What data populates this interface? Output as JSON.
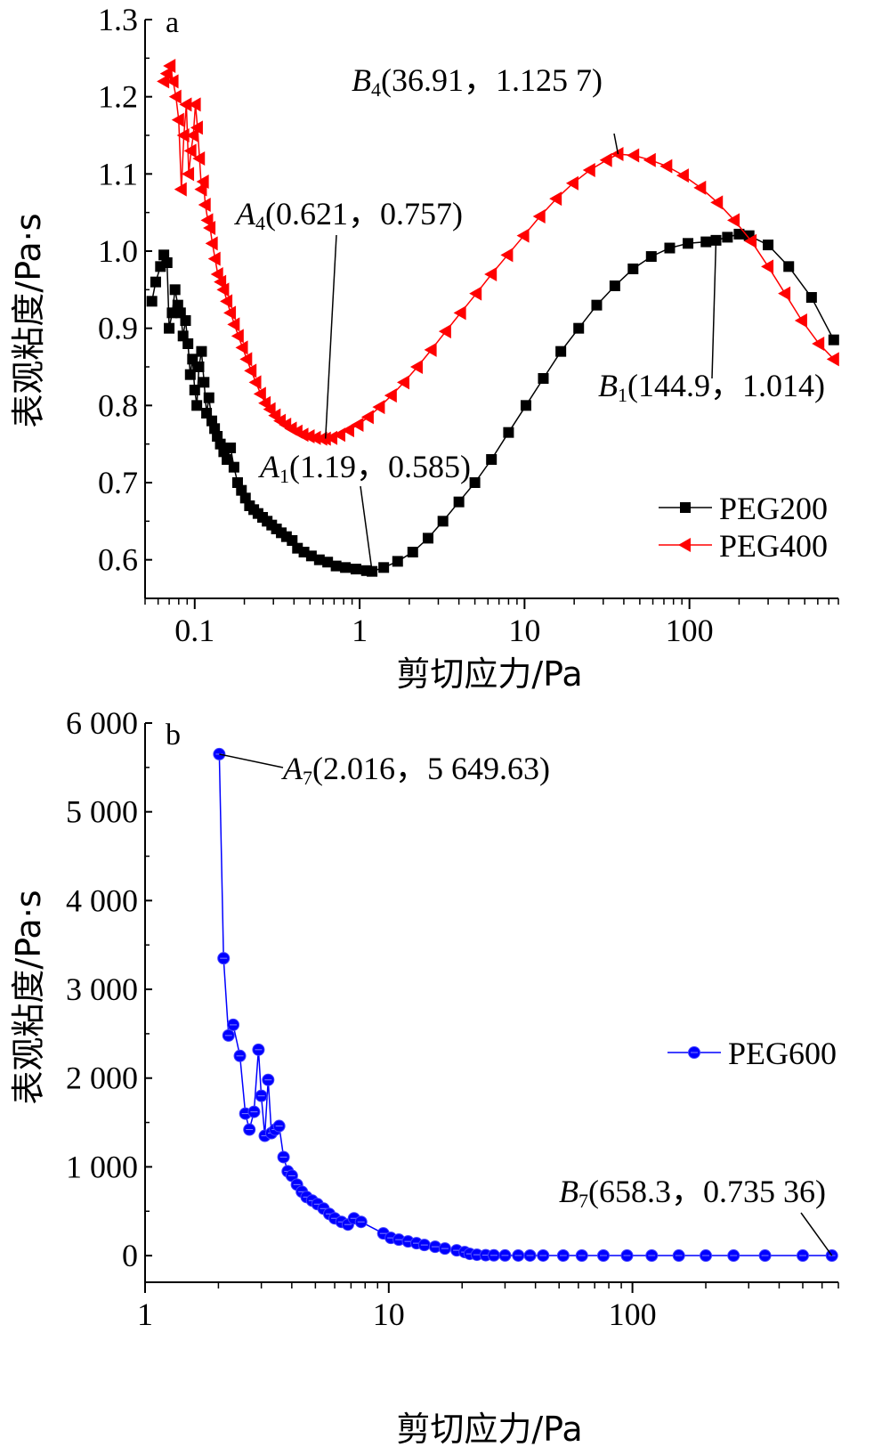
{
  "chart_data": [
    {
      "panel": "a",
      "type": "line",
      "xlabel": "剪切应力/Pa",
      "ylabel": "表观粘度/Pa·s",
      "xscale": "log",
      "xlim": [
        0.05,
        800
      ],
      "ylim": [
        0.55,
        1.3
      ],
      "x_ticks": [
        0.1,
        1,
        10,
        100
      ],
      "x_tick_labels": [
        "0.1",
        "1",
        "10",
        "100"
      ],
      "y_ticks": [
        0.6,
        0.7,
        0.8,
        0.9,
        1.0,
        1.1,
        1.2,
        1.3
      ],
      "y_tick_labels": [
        "0.6",
        "0.7",
        "0.8",
        "0.9",
        "1.0",
        "1.1",
        "1.2",
        "1.3"
      ],
      "legend_position": "bottom-right",
      "series": [
        {
          "name": "PEG200",
          "color": "#000000",
          "marker": "square",
          "x": [
            0.055,
            0.058,
            0.062,
            0.065,
            0.068,
            0.07,
            0.073,
            0.076,
            0.079,
            0.082,
            0.085,
            0.088,
            0.091,
            0.094,
            0.097,
            0.1,
            0.103,
            0.106,
            0.11,
            0.114,
            0.118,
            0.122,
            0.127,
            0.132,
            0.137,
            0.143,
            0.15,
            0.157,
            0.165,
            0.173,
            0.182,
            0.192,
            0.203,
            0.215,
            0.228,
            0.242,
            0.258,
            0.275,
            0.293,
            0.313,
            0.335,
            0.36,
            0.39,
            0.42,
            0.46,
            0.51,
            0.57,
            0.64,
            0.72,
            0.82,
            0.95,
            1.1,
            1.19,
            1.4,
            1.7,
            2.1,
            2.6,
            3.2,
            4.0,
            5.0,
            6.3,
            8.0,
            10.2,
            13.0,
            16.6,
            21.3,
            27.4,
            35.3,
            45.5,
            58.7,
            75.9,
            98,
            126,
            144.9,
            170,
            200,
            230,
            300,
            400,
            550,
            750
          ],
          "values": [
            0.935,
            0.96,
            0.98,
            0.995,
            0.985,
            0.9,
            0.92,
            0.95,
            0.93,
            0.92,
            0.89,
            0.91,
            0.88,
            0.84,
            0.86,
            0.82,
            0.8,
            0.85,
            0.87,
            0.83,
            0.79,
            0.81,
            0.78,
            0.77,
            0.76,
            0.75,
            0.74,
            0.73,
            0.745,
            0.72,
            0.7,
            0.69,
            0.68,
            0.67,
            0.665,
            0.66,
            0.655,
            0.65,
            0.645,
            0.64,
            0.635,
            0.63,
            0.625,
            0.615,
            0.61,
            0.605,
            0.6,
            0.597,
            0.592,
            0.59,
            0.588,
            0.586,
            0.585,
            0.59,
            0.598,
            0.61,
            0.628,
            0.65,
            0.675,
            0.7,
            0.73,
            0.765,
            0.8,
            0.835,
            0.87,
            0.9,
            0.93,
            0.955,
            0.977,
            0.993,
            1.004,
            1.01,
            1.012,
            1.014,
            1.018,
            1.022,
            1.02,
            1.008,
            0.98,
            0.94,
            0.885
          ]
        },
        {
          "name": "PEG400",
          "color": "#ff0000",
          "marker": "triangle-left",
          "x": [
            0.065,
            0.068,
            0.071,
            0.074,
            0.077,
            0.08,
            0.083,
            0.086,
            0.089,
            0.092,
            0.095,
            0.098,
            0.101,
            0.104,
            0.107,
            0.11,
            0.113,
            0.116,
            0.12,
            0.124,
            0.128,
            0.133,
            0.138,
            0.144,
            0.15,
            0.157,
            0.165,
            0.174,
            0.184,
            0.195,
            0.207,
            0.22,
            0.235,
            0.251,
            0.268,
            0.287,
            0.308,
            0.331,
            0.357,
            0.386,
            0.418,
            0.454,
            0.495,
            0.54,
            0.59,
            0.621,
            0.68,
            0.76,
            0.86,
            0.98,
            1.13,
            1.32,
            1.56,
            1.86,
            2.24,
            2.72,
            3.33,
            4.1,
            5.1,
            6.3,
            7.9,
            9.9,
            12.4,
            15.6,
            19.7,
            24.9,
            31.5,
            36.91,
            46,
            58,
            73,
            92,
            117,
            148,
            187,
            237,
            300,
            380,
            480,
            610,
            750
          ],
          "values": [
            1.22,
            1.23,
            1.24,
            1.22,
            1.2,
            1.17,
            1.08,
            1.15,
            1.19,
            1.1,
            1.13,
            1.15,
            1.19,
            1.16,
            1.12,
            1.08,
            1.09,
            1.06,
            1.04,
            1.03,
            1.01,
            0.99,
            0.97,
            0.96,
            0.95,
            0.935,
            0.92,
            0.905,
            0.89,
            0.875,
            0.86,
            0.845,
            0.83,
            0.815,
            0.803,
            0.795,
            0.787,
            0.78,
            0.775,
            0.77,
            0.766,
            0.762,
            0.76,
            0.758,
            0.757,
            0.757,
            0.758,
            0.762,
            0.768,
            0.775,
            0.785,
            0.798,
            0.813,
            0.83,
            0.85,
            0.872,
            0.896,
            0.92,
            0.945,
            0.97,
            0.995,
            1.02,
            1.045,
            1.068,
            1.088,
            1.105,
            1.118,
            1.1257,
            1.124,
            1.118,
            1.11,
            1.098,
            1.082,
            1.063,
            1.04,
            1.013,
            0.98,
            0.945,
            0.91,
            0.88,
            0.86
          ]
        }
      ],
      "annotations": [
        {
          "letter": "B",
          "sub": "4",
          "text": "(36.91，1.125 7)",
          "x": 36.91,
          "y": 1.1257
        },
        {
          "letter": "A",
          "sub": "4",
          "text": "(0.621，0.757)",
          "x": 0.621,
          "y": 0.757
        },
        {
          "letter": "B",
          "sub": "1",
          "text": "(144.9，1.014)",
          "x": 144.9,
          "y": 1.014
        },
        {
          "letter": "A",
          "sub": "1",
          "text": "(1.19，0.585)",
          "x": 1.19,
          "y": 0.585
        }
      ]
    },
    {
      "panel": "b",
      "type": "line",
      "xlabel": "剪切应力/Pa",
      "ylabel": "表观粘度/Pa·s",
      "xscale": "log",
      "xlim": [
        1,
        700
      ],
      "ylim": [
        -300,
        6000
      ],
      "x_ticks": [
        1,
        10,
        100
      ],
      "x_tick_labels": [
        "1",
        "10",
        "100"
      ],
      "y_ticks": [
        0,
        1000,
        2000,
        3000,
        4000,
        5000,
        6000
      ],
      "y_tick_labels": [
        "0",
        "1 000",
        "2 000",
        "3 000",
        "4 000",
        "5 000",
        "6 000"
      ],
      "legend_position": "right",
      "series": [
        {
          "name": "PEG600",
          "color": "#0000ff",
          "marker": "circle",
          "x": [
            2.016,
            2.1,
            2.2,
            2.3,
            2.45,
            2.58,
            2.68,
            2.8,
            2.92,
            3.0,
            3.1,
            3.2,
            3.3,
            3.42,
            3.55,
            3.7,
            3.85,
            4.0,
            4.2,
            4.4,
            4.6,
            4.85,
            5.1,
            5.4,
            5.7,
            6.0,
            6.4,
            6.8,
            7.2,
            7.7,
            9.5,
            10.2,
            11,
            12,
            13,
            14,
            15.5,
            17,
            19,
            20.5,
            21.5,
            23,
            25,
            27,
            30,
            34,
            38,
            43,
            52,
            62,
            76,
            95,
            120,
            155,
            200,
            260,
            350,
            500,
            658.3
          ],
          "values": [
            5649.63,
            3350,
            2480,
            2600,
            2250,
            1600,
            1420,
            1620,
            2320,
            1800,
            1350,
            1980,
            1380,
            1420,
            1460,
            1110,
            950,
            900,
            800,
            720,
            660,
            620,
            580,
            530,
            470,
            420,
            380,
            350,
            420,
            380,
            250,
            200,
            180,
            160,
            140,
            120,
            100,
            80,
            60,
            40,
            20,
            10,
            5,
            3,
            2,
            1.5,
            1.2,
            1.1,
            1.0,
            0.95,
            0.9,
            0.88,
            0.85,
            0.82,
            0.8,
            0.78,
            0.76,
            0.74,
            0.73536
          ]
        }
      ],
      "annotations": [
        {
          "letter": "A",
          "sub": "7",
          "text": "(2.016，5 649.63)",
          "x": 2.016,
          "y": 5649.63
        },
        {
          "letter": "B",
          "sub": "7",
          "text": "(658.3，0.735 36)",
          "x": 658.3,
          "y": 0.73536
        }
      ]
    }
  ]
}
